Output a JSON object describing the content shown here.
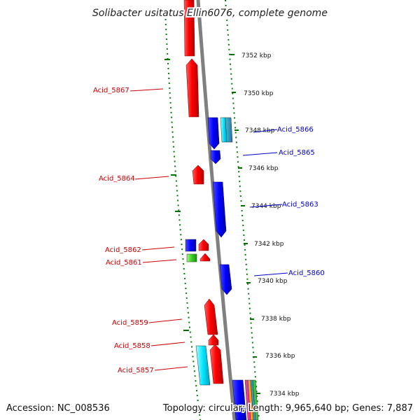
{
  "title": "Solibacter usitatus Ellin6076, complete genome",
  "footer": {
    "accession": "Accession: NC_008536",
    "summary": "Topology: circular; Length: 9,965,640 bp; Genes: 7,887"
  },
  "colors": {
    "forward_strand": "#ff0000",
    "reverse_strand": "#0000ff",
    "backbone": "#808080",
    "dotted_ring": "#008000",
    "tick": "#006600",
    "forward_label": "#cc0000",
    "reverse_label": "#0000cc"
  },
  "kbp_labels": [
    "7352 kbp",
    "7350 kbp",
    "7348 kbp",
    "7346 kbp",
    "7344 kbp",
    "7342 kbp",
    "7340 kbp",
    "7338 kbp",
    "7336 kbp",
    "7334 kbp"
  ],
  "forward_gene_labels": [
    "Acid_5867",
    "Acid_5864",
    "Acid_5862",
    "Acid_5861",
    "Acid_5859",
    "Acid_5858",
    "Acid_5857"
  ],
  "reverse_gene_labels": [
    "Acid_5866",
    "Acid_5865",
    "Acid_5863",
    "Acid_5860"
  ]
}
